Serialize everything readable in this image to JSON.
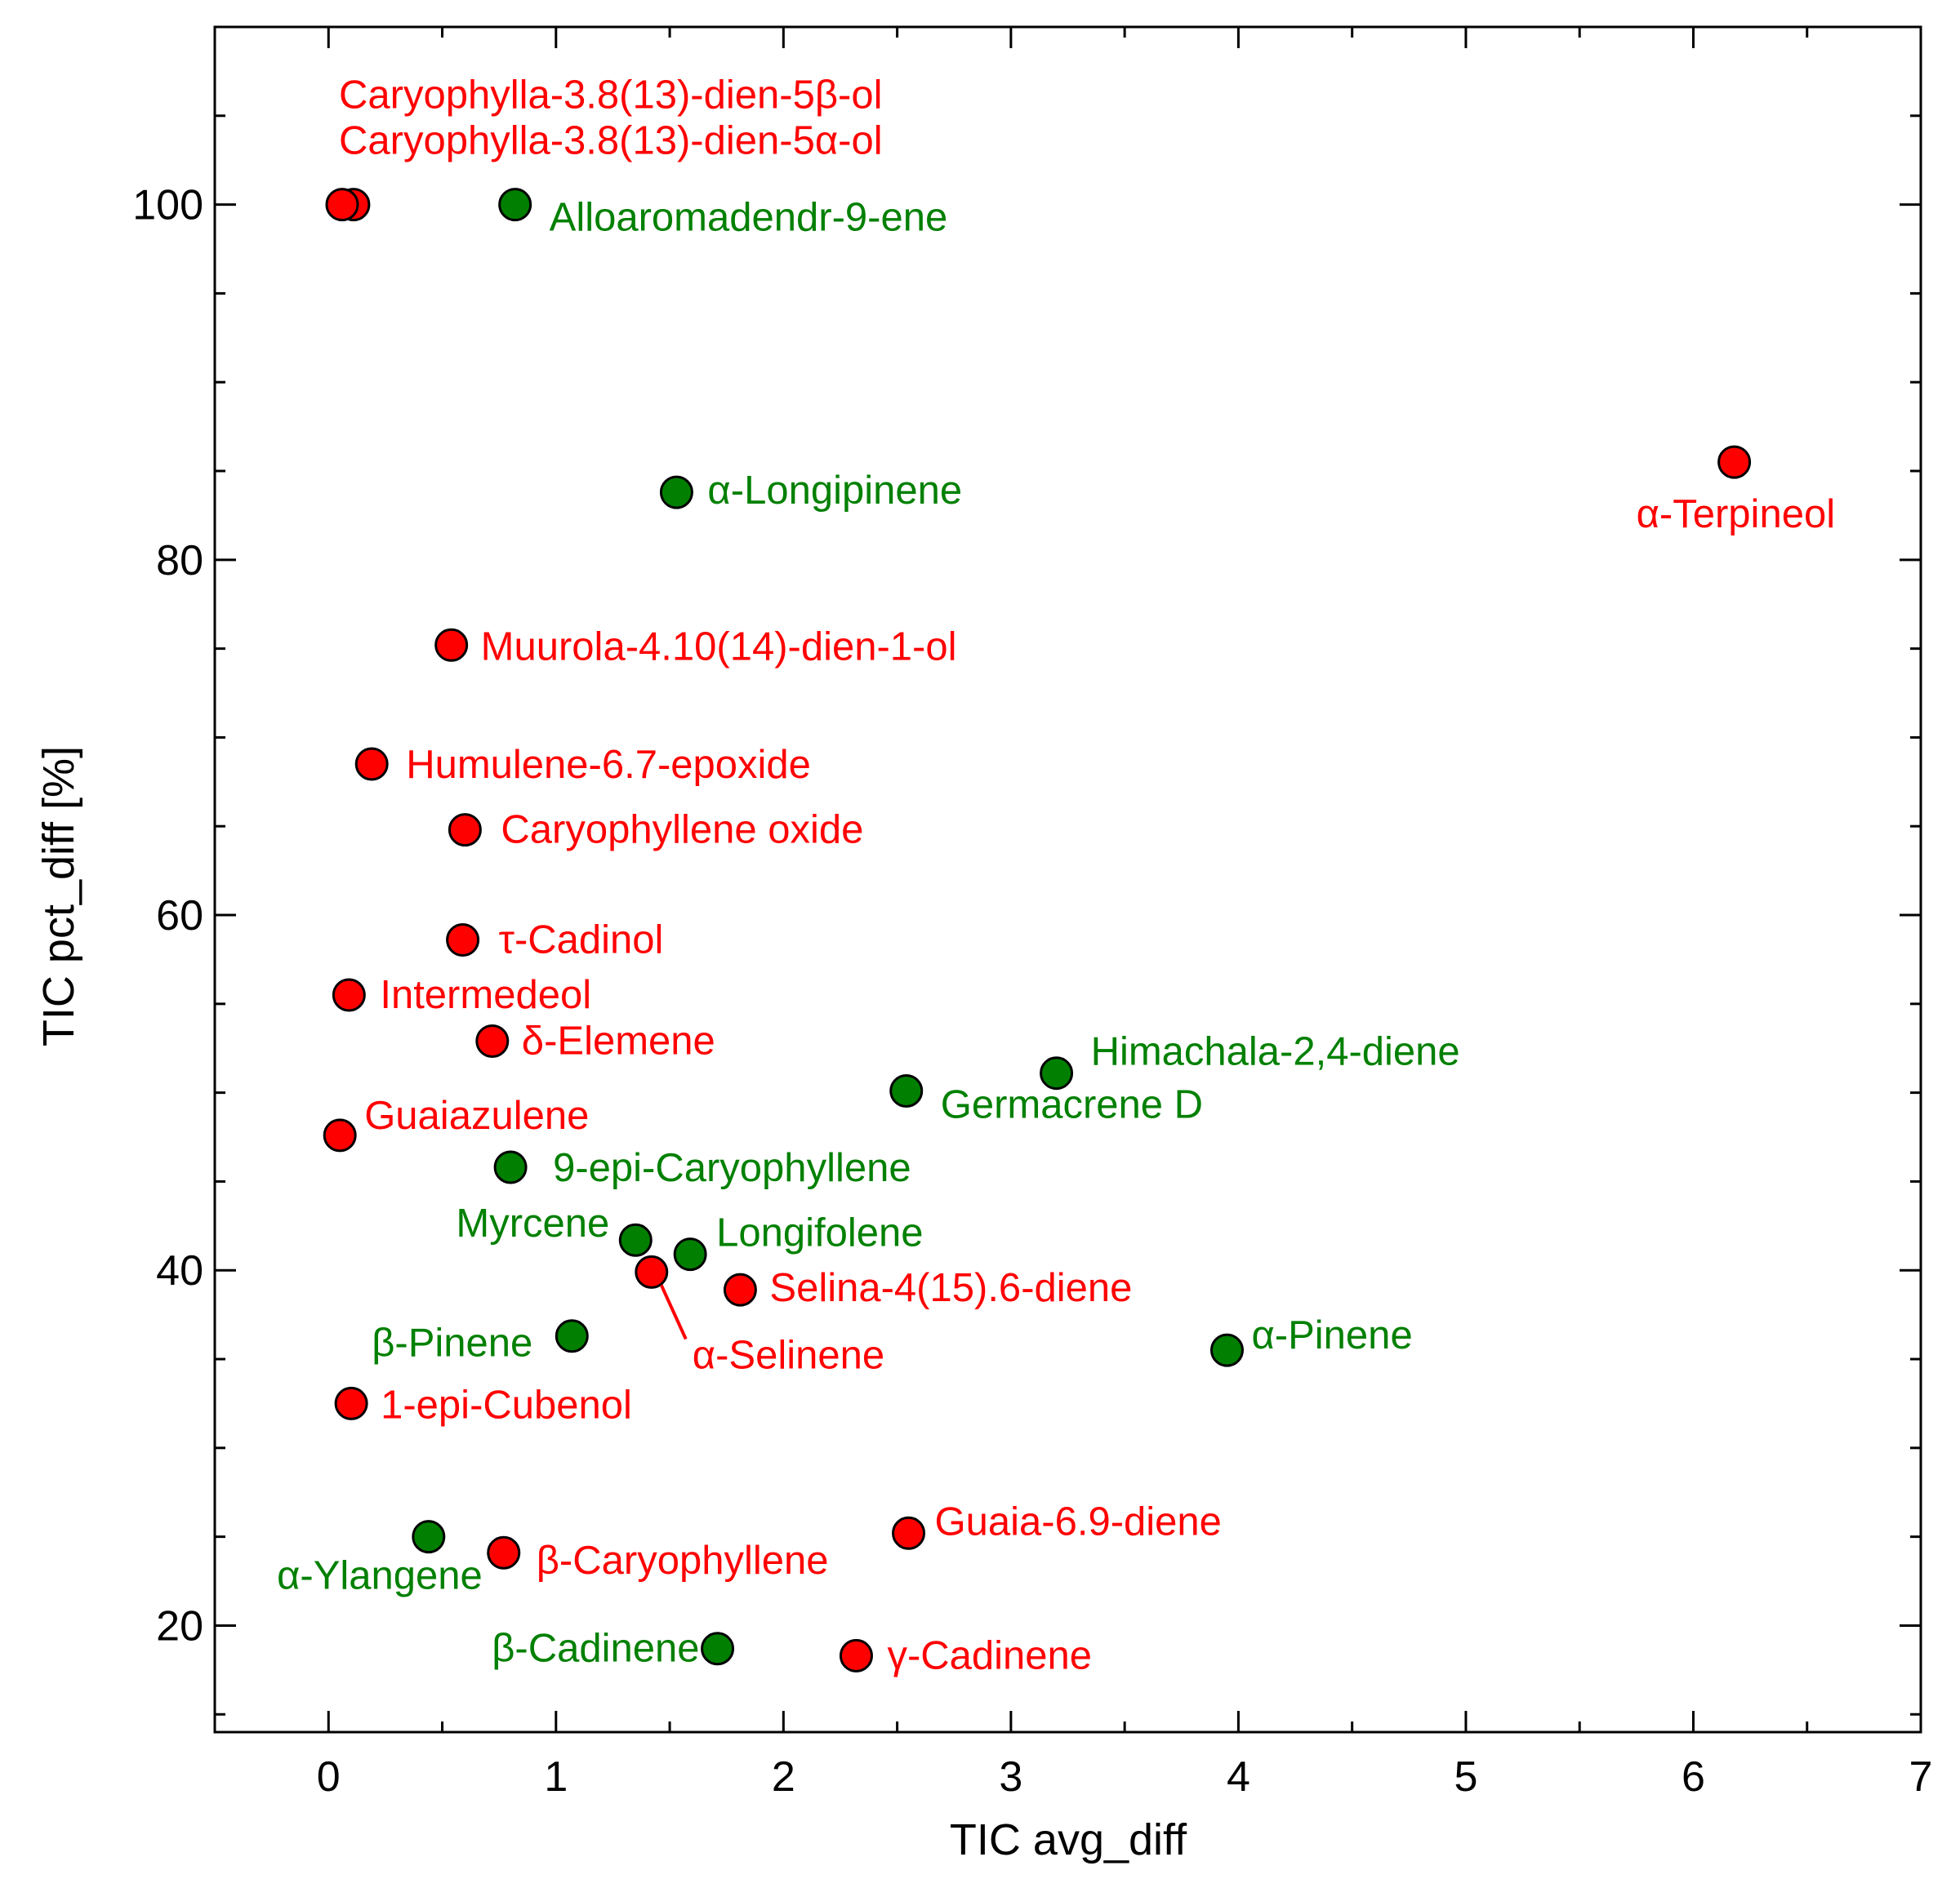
{
  "chart_data": {
    "type": "scatter",
    "title": "",
    "xlabel": "TIC avg_diff",
    "ylabel": "TIC pct_diff [%]",
    "xlim": [
      -0.5,
      7
    ],
    "ylim": [
      14,
      110
    ],
    "x_ticks": [
      0,
      1,
      2,
      3,
      4,
      5,
      6,
      7
    ],
    "y_ticks": [
      20,
      40,
      60,
      80,
      100
    ],
    "x_tick_labels": [
      "0",
      "1",
      "2",
      "3",
      "4",
      "5",
      "6",
      "7"
    ],
    "y_tick_labels": [
      "20",
      "40",
      "60",
      "80",
      "100"
    ],
    "grid": false,
    "colors": {
      "red": "#ff0000",
      "green": "#007f00",
      "red_text": "#ff0000",
      "green_text": "#008000"
    },
    "series": [
      {
        "name": "red",
        "color": "red",
        "points": [
          {
            "label": "Caryophylla-3.8(13)-dien-5β-ol",
            "x": 0.11,
            "y": 100.0
          },
          {
            "label": "Caryophylla-3.8(13)-dien-5α-ol",
            "x": 0.06,
            "y": 100.0
          },
          {
            "label": "α-Terpineol",
            "x": 6.18,
            "y": 85.5
          },
          {
            "label": "Muurola-4.10(14)-dien-1-ol",
            "x": 0.54,
            "y": 75.2
          },
          {
            "label": "Humulene-6.7-epoxide",
            "x": 0.19,
            "y": 68.5
          },
          {
            "label": "Caryophyllene oxide",
            "x": 0.6,
            "y": 64.8
          },
          {
            "label": "τ-Cadinol",
            "x": 0.59,
            "y": 58.6
          },
          {
            "label": "Intermedeol",
            "x": 0.09,
            "y": 55.5
          },
          {
            "label": "δ-Elemene",
            "x": 0.72,
            "y": 52.9
          },
          {
            "label": "Guaiazulene",
            "x": 0.05,
            "y": 47.6
          },
          {
            "label": "α-Selinene",
            "x": 1.42,
            "y": 39.9
          },
          {
            "label": "Selina-4(15).6-diene",
            "x": 1.81,
            "y": 38.9
          },
          {
            "label": "1-epi-Cubenol",
            "x": 0.1,
            "y": 32.5
          },
          {
            "label": "Guaia-6.9-diene",
            "x": 2.55,
            "y": 25.2
          },
          {
            "label": "β-Caryophyllene",
            "x": 0.77,
            "y": 24.1
          },
          {
            "label": "γ-Cadinene",
            "x": 2.32,
            "y": 18.3
          }
        ]
      },
      {
        "name": "green",
        "color": "green",
        "points": [
          {
            "label": "Alloaromadendr-9-ene",
            "x": 0.82,
            "y": 100.0
          },
          {
            "label": "α-Longipinene",
            "x": 1.53,
            "y": 83.8
          },
          {
            "label": "Himachala-2,4-diene",
            "x": 3.2,
            "y": 51.1
          },
          {
            "label": "Germacrene D",
            "x": 2.54,
            "y": 50.1
          },
          {
            "label": "9-epi-Caryophyllene",
            "x": 0.8,
            "y": 45.8
          },
          {
            "label": "Myrcene",
            "x": 1.35,
            "y": 41.7
          },
          {
            "label": "Longifolene",
            "x": 1.59,
            "y": 40.9
          },
          {
            "label": "β-Pinene",
            "x": 1.07,
            "y": 36.3
          },
          {
            "label": "α-Pinene",
            "x": 3.95,
            "y": 35.5
          },
          {
            "label": "α-Ylangene",
            "x": 0.44,
            "y": 25.0
          },
          {
            "label": "β-Cadinene",
            "x": 1.71,
            "y": 18.7
          }
        ]
      }
    ]
  }
}
